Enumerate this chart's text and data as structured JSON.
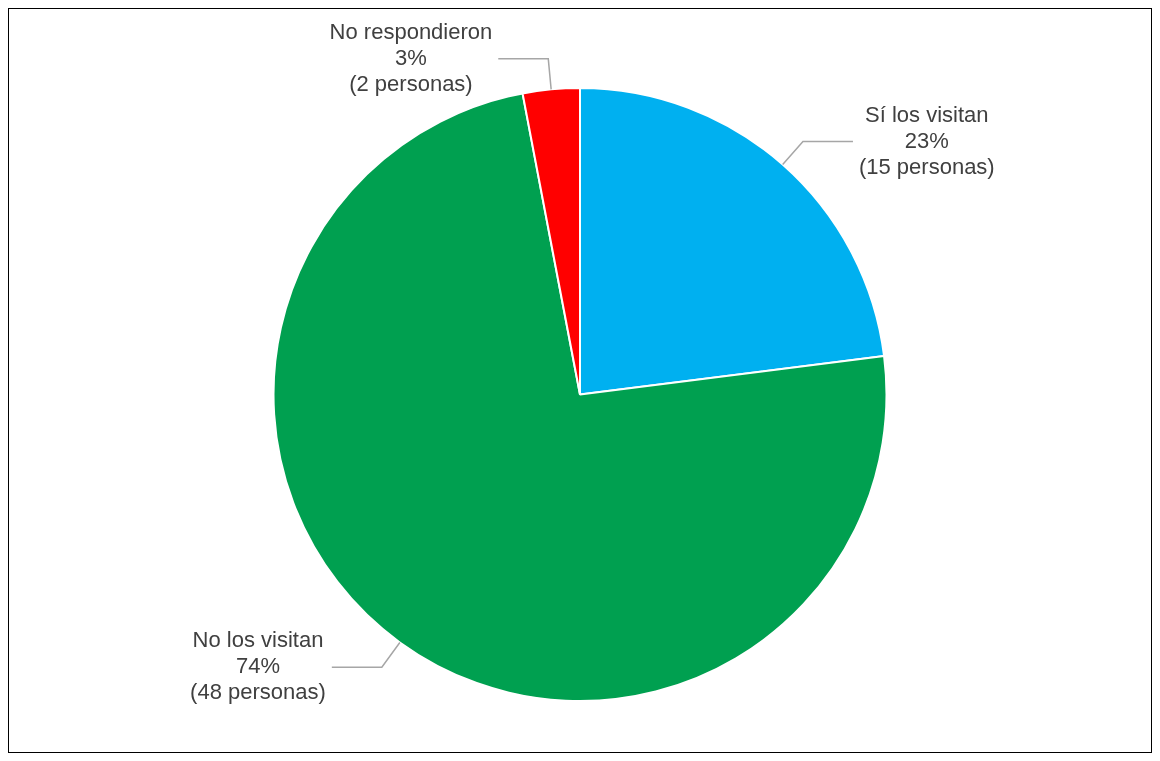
{
  "chart_data": {
    "type": "pie",
    "categories": [
      "Sí los visitan",
      "No los visitan",
      "No respondieron"
    ],
    "values": [
      23,
      74,
      3
    ],
    "colors": [
      "#00b0f0",
      "#00a050",
      "#ff0000"
    ],
    "value_labels": [
      "23%\n(15 personas)",
      "74%\n(48 personas)",
      "3%\n(2 personas)"
    ],
    "legend": false
  }
}
